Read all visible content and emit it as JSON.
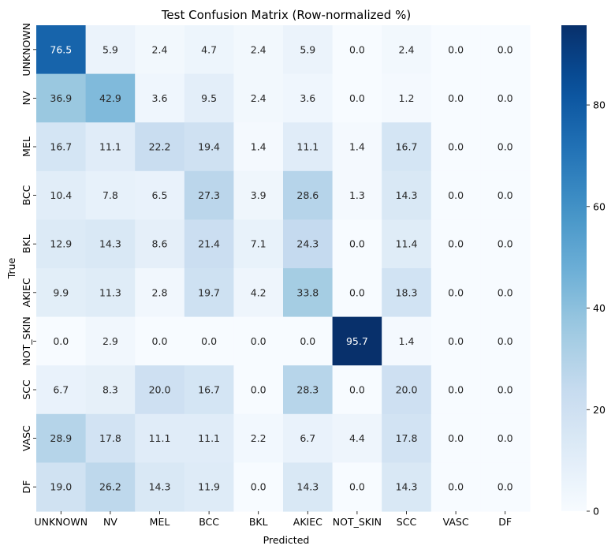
{
  "chart_data": {
    "type": "heatmap",
    "title": "Test Confusion Matrix (Row-normalized %)",
    "xlabel": "Predicted",
    "ylabel": "True",
    "x_categories": [
      "UNKNOWN",
      "NV",
      "MEL",
      "BCC",
      "BKL",
      "AKIEC",
      "NOT_SKIN",
      "SCC",
      "VASC",
      "DF"
    ],
    "y_categories": [
      "UNKNOWN",
      "NV",
      "MEL",
      "BCC",
      "BKL",
      "AKIEC",
      "NOT_SKIN",
      "SCC",
      "VASC",
      "DF"
    ],
    "values": [
      [
        76.5,
        5.9,
        2.4,
        4.7,
        2.4,
        5.9,
        0.0,
        2.4,
        0.0,
        0.0
      ],
      [
        36.9,
        42.9,
        3.6,
        9.5,
        2.4,
        3.6,
        0.0,
        1.2,
        0.0,
        0.0
      ],
      [
        16.7,
        11.1,
        22.2,
        19.4,
        1.4,
        11.1,
        1.4,
        16.7,
        0.0,
        0.0
      ],
      [
        10.4,
        7.8,
        6.5,
        27.3,
        3.9,
        28.6,
        1.3,
        14.3,
        0.0,
        0.0
      ],
      [
        12.9,
        14.3,
        8.6,
        21.4,
        7.1,
        24.3,
        0.0,
        11.4,
        0.0,
        0.0
      ],
      [
        9.9,
        11.3,
        2.8,
        19.7,
        4.2,
        33.8,
        0.0,
        18.3,
        0.0,
        0.0
      ],
      [
        0.0,
        2.9,
        0.0,
        0.0,
        0.0,
        0.0,
        95.7,
        1.4,
        0.0,
        0.0
      ],
      [
        6.7,
        8.3,
        20.0,
        16.7,
        0.0,
        28.3,
        0.0,
        20.0,
        0.0,
        0.0
      ],
      [
        28.9,
        17.8,
        11.1,
        11.1,
        2.2,
        6.7,
        4.4,
        17.8,
        0.0,
        0.0
      ],
      [
        19.0,
        26.2,
        14.3,
        11.9,
        0.0,
        14.3,
        0.0,
        14.3,
        0.0,
        0.0
      ]
    ],
    "colormap": "Blues",
    "vmin": 0,
    "vmax": 95.7,
    "colorbar_ticks": [
      0,
      20,
      40,
      60,
      80
    ],
    "annotation_format": "0.0"
  }
}
